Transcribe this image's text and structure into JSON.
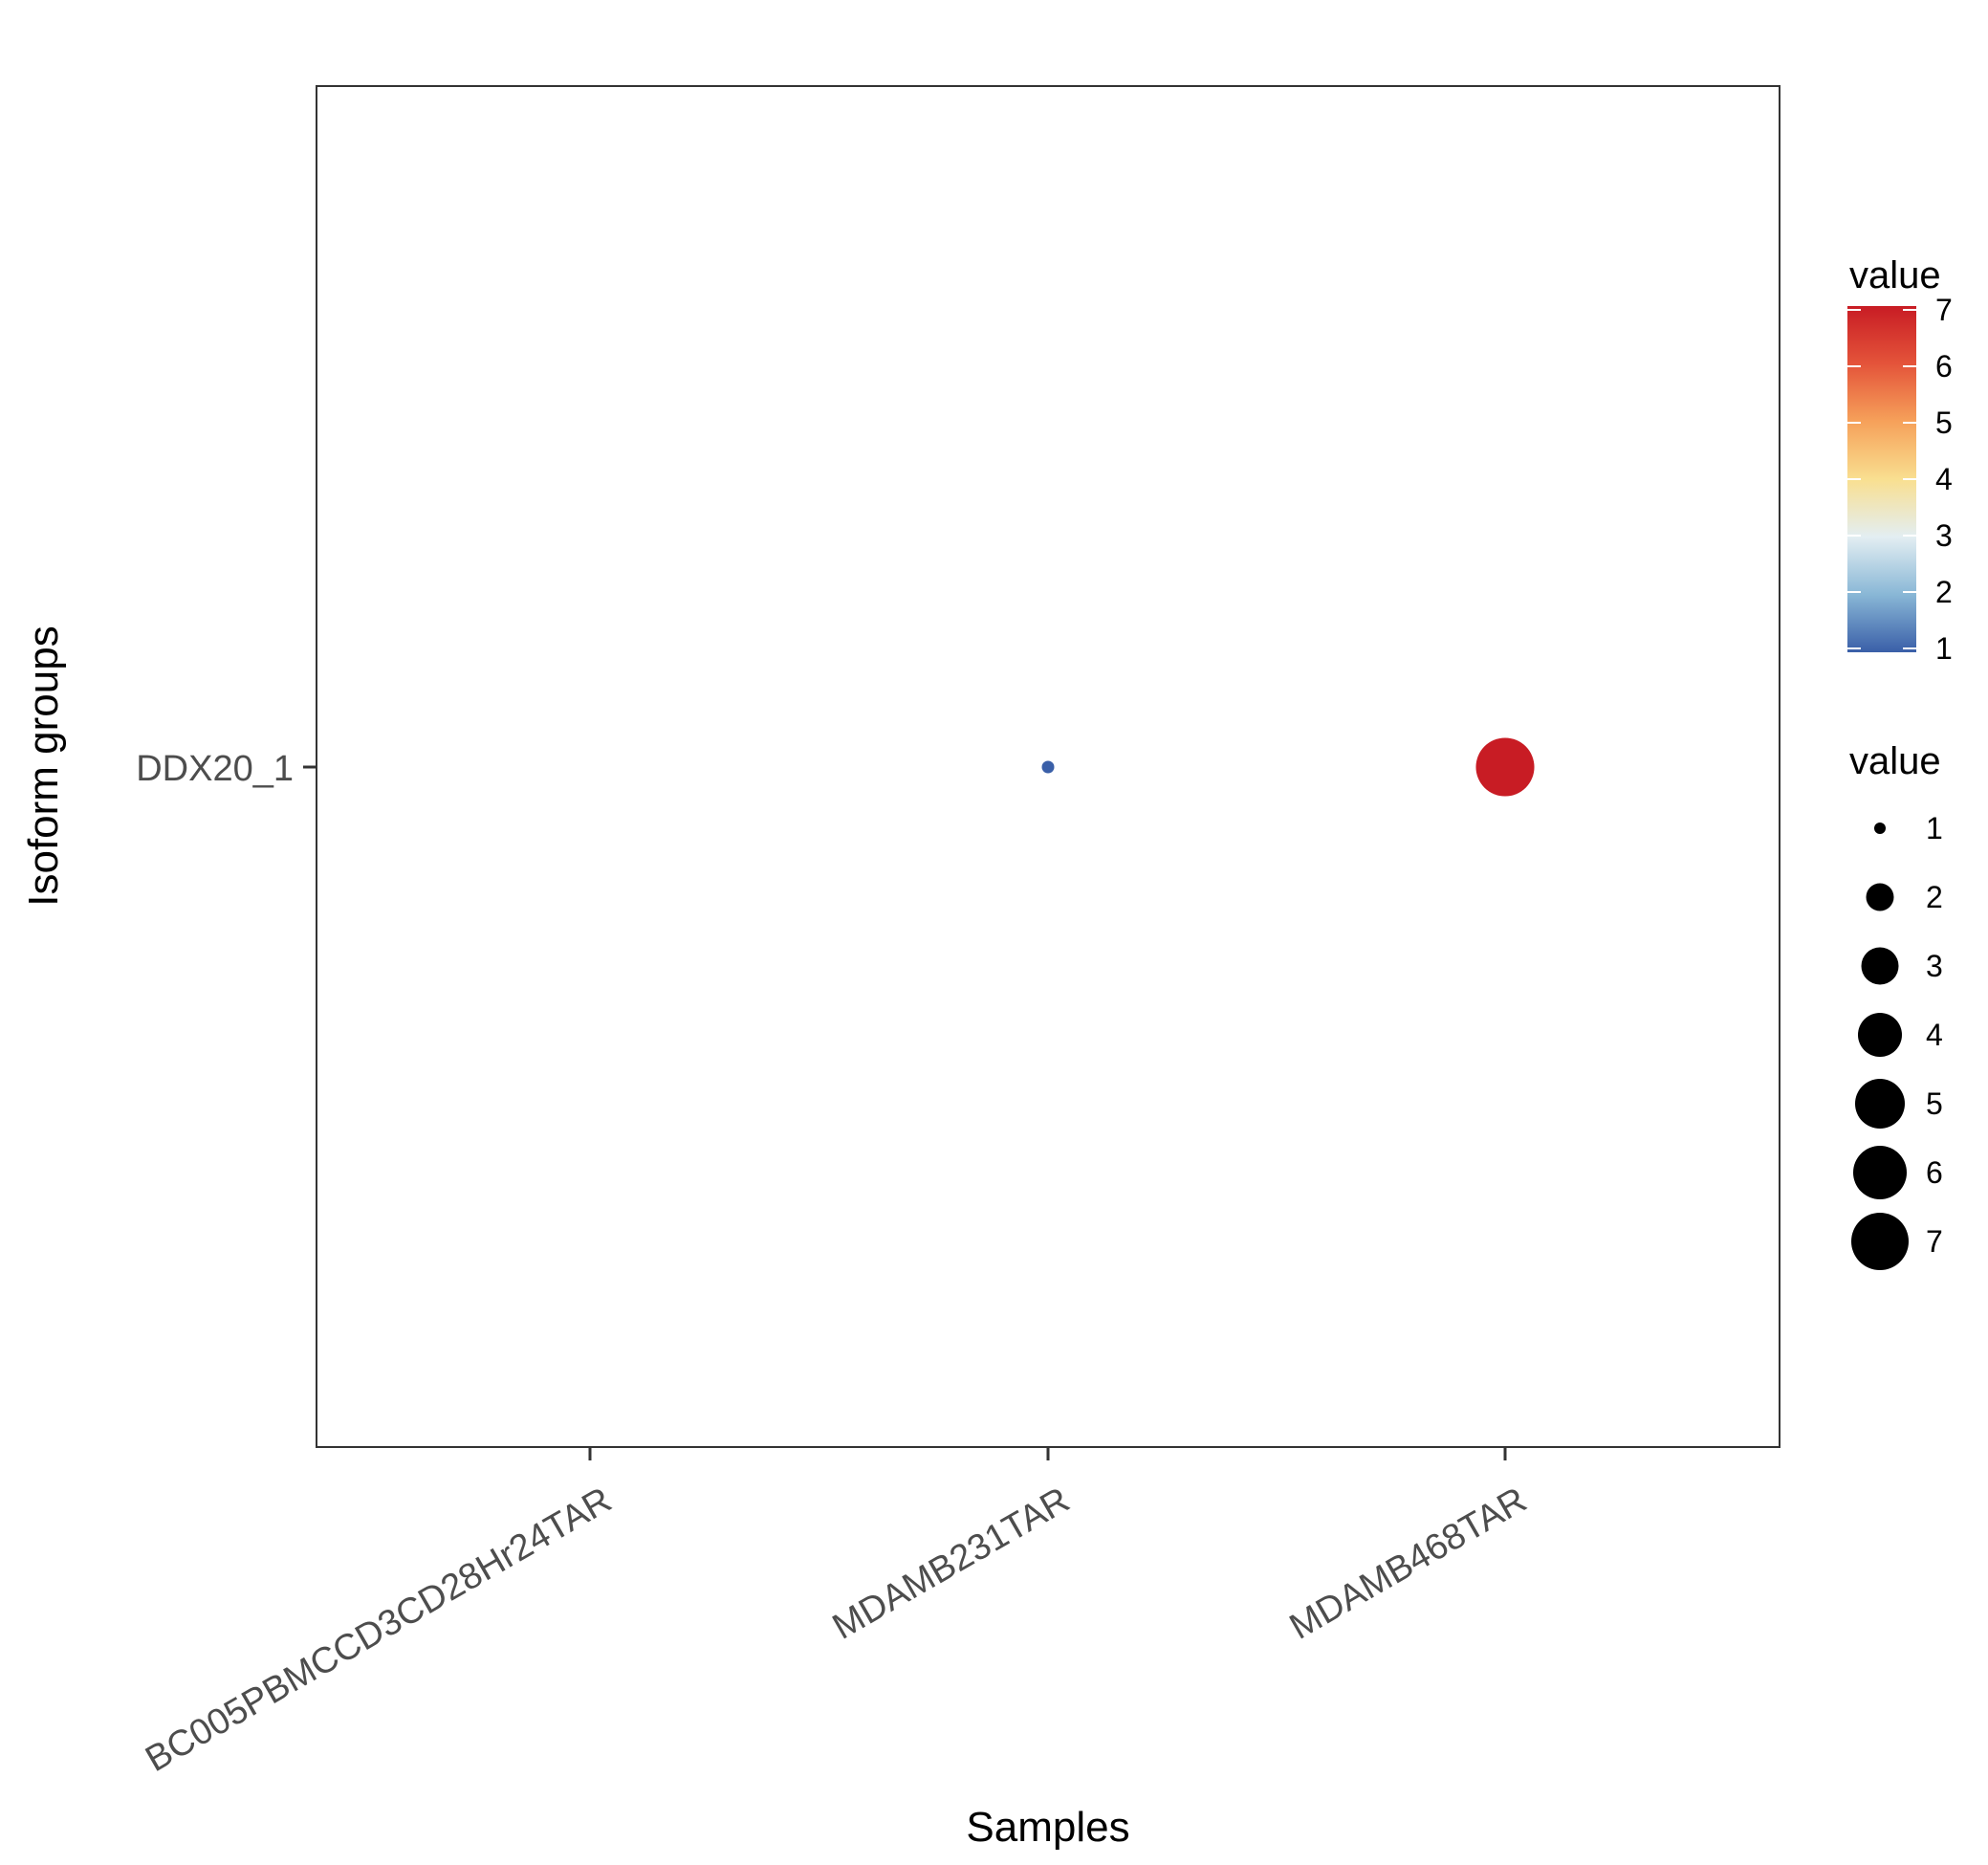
{
  "chart_data": {
    "type": "scatter",
    "xlabel": "Samples",
    "ylabel": "Isoform groups",
    "x_categories": [
      "BC005PBMCCD3CD28Hr24TAR",
      "MDAMB231TAR",
      "MDAMB468TAR"
    ],
    "y_categories": [
      "DDX20_1"
    ],
    "points": [
      {
        "x": "MDAMB231TAR",
        "y": "DDX20_1",
        "value": 1
      },
      {
        "x": "MDAMB468TAR",
        "y": "DDX20_1",
        "value": 7
      }
    ],
    "color_legend": {
      "title": "value",
      "ticks": [
        "1",
        "2",
        "3",
        "4",
        "5",
        "6",
        "7"
      ],
      "range": [
        1,
        7
      ],
      "palette": [
        "#3a5fa8",
        "#89b7d6",
        "#e3eef2",
        "#f9df90",
        "#f6a15a",
        "#e4543a",
        "#c81c24"
      ]
    },
    "size_legend": {
      "title": "value",
      "labels": [
        "1",
        "2",
        "3",
        "4",
        "5",
        "6",
        "7"
      ],
      "values": [
        1,
        2,
        3,
        4,
        5,
        6,
        7
      ],
      "color": "#000000"
    },
    "grid": false,
    "legend_position": "right"
  }
}
